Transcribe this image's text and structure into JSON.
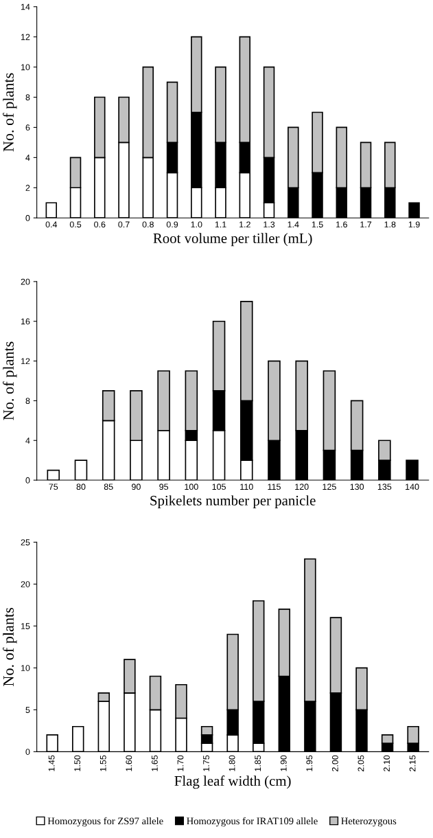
{
  "chart_data": [
    {
      "type": "bar",
      "stacked": true,
      "xlabel": "Root volume per tiller (mL)",
      "ylabel": "No. of plants",
      "categories": [
        "0.4",
        "0.5",
        "0.6",
        "0.7",
        "0.8",
        "0.9",
        "1.0",
        "1.1",
        "1.2",
        "1.3",
        "1.4",
        "1.5",
        "1.6",
        "1.7",
        "1.8",
        "1.9"
      ],
      "ylim": [
        0,
        14
      ],
      "yticks": [
        0,
        2,
        4,
        6,
        8,
        10,
        12,
        14
      ],
      "grid": false,
      "legend": false,
      "series": [
        {
          "color": "#ffffff",
          "values": [
            1,
            2,
            4,
            5,
            4,
            3,
            2,
            2,
            3,
            1,
            null,
            null,
            null,
            null,
            null,
            null
          ]
        },
        {
          "color": "#000000",
          "values": [
            null,
            null,
            null,
            null,
            null,
            2,
            5,
            3,
            2,
            3,
            2,
            3,
            2,
            2,
            2,
            1
          ]
        },
        {
          "color": "#c0c0c0",
          "values": [
            null,
            2,
            4,
            3,
            6,
            4,
            5,
            5,
            7,
            6,
            4,
            4,
            4,
            3,
            3,
            null
          ]
        }
      ]
    },
    {
      "type": "bar",
      "stacked": true,
      "xlabel": "Spikelets number per panicle",
      "ylabel": "No. of plants",
      "categories": [
        "75",
        "80",
        "85",
        "90",
        "95",
        "100",
        "105",
        "110",
        "115",
        "120",
        "125",
        "130",
        "135",
        "140"
      ],
      "ylim": [
        0,
        20
      ],
      "yticks": [
        0,
        4,
        8,
        12,
        16,
        20
      ],
      "grid": false,
      "legend": false,
      "series": [
        {
          "color": "#ffffff",
          "values": [
            1,
            2,
            6,
            4,
            5,
            4,
            5,
            2,
            null,
            null,
            null,
            null,
            null,
            null
          ]
        },
        {
          "color": "#000000",
          "values": [
            null,
            null,
            null,
            null,
            null,
            1,
            4,
            6,
            4,
            5,
            3,
            3,
            2,
            2
          ]
        },
        {
          "color": "#c0c0c0",
          "values": [
            null,
            null,
            3,
            5,
            6,
            6,
            7,
            10,
            8,
            7,
            8,
            5,
            2,
            null
          ]
        }
      ]
    },
    {
      "type": "bar",
      "stacked": true,
      "xlabel": "Flag leaf width (cm)",
      "ylabel": "No. of plants",
      "categories": [
        "1.45",
        "1.50",
        "1.55",
        "1.60",
        "1.65",
        "1.70",
        "1.75",
        "1.80",
        "1.85",
        "1.90",
        "1.95",
        "2.00",
        "2.05",
        "2.10",
        "2.15"
      ],
      "ylim": [
        0,
        25
      ],
      "yticks": [
        0,
        5,
        10,
        15,
        20,
        25
      ],
      "grid": false,
      "legend": "bottom",
      "series": [
        {
          "name": "Homozygous for ZS97 allele",
          "color": "#ffffff",
          "values": [
            2,
            3,
            6,
            7,
            5,
            4,
            1,
            2,
            1,
            null,
            null,
            null,
            null,
            null,
            null
          ]
        },
        {
          "name": "Homozygous for IRAT109 allele",
          "color": "#000000",
          "values": [
            null,
            null,
            null,
            null,
            null,
            null,
            1,
            3,
            5,
            9,
            6,
            7,
            5,
            1,
            1
          ]
        },
        {
          "name": "Heterozygous",
          "color": "#c0c0c0",
          "values": [
            null,
            null,
            1,
            4,
            4,
            4,
            1,
            9,
            12,
            8,
            17,
            9,
            5,
            1,
            2
          ]
        }
      ]
    }
  ]
}
